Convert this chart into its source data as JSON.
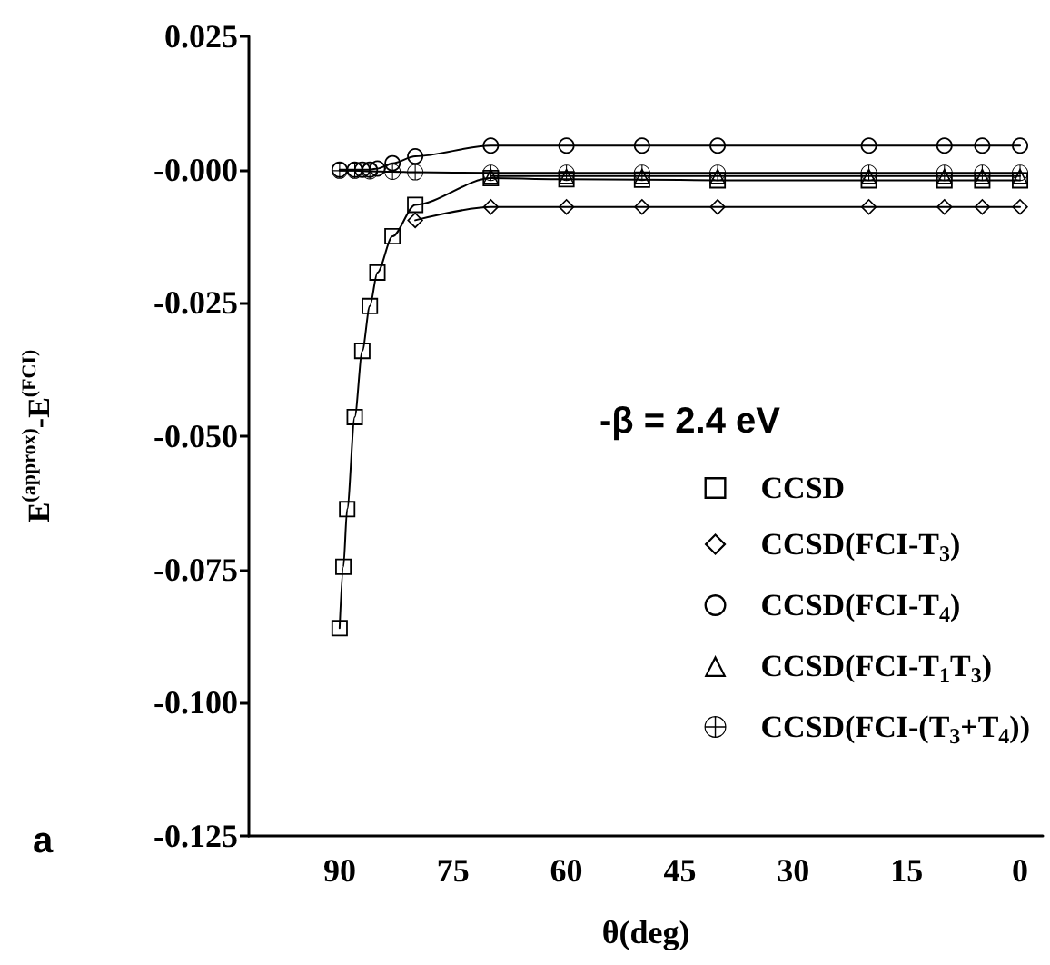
{
  "chart_data": {
    "type": "line",
    "xlabel": "θ(deg)",
    "ylabel": "E$^{(approx)}$-E$^{(FCI)}$",
    "annotations": [
      "-β = 2.4 eV",
      "a"
    ],
    "xlim": [
      102,
      -3
    ],
    "xticks": [
      90,
      75,
      60,
      45,
      30,
      15,
      0
    ],
    "ylim": [
      -0.125,
      0.025
    ],
    "yticks": [
      {
        "value": 0.025,
        "label": "0.025"
      },
      {
        "value": 0,
        "label": "-0.000"
      },
      {
        "value": -0.025,
        "label": "-0.025"
      },
      {
        "value": -0.05,
        "label": "-0.050"
      },
      {
        "value": -0.075,
        "label": "-0.075"
      },
      {
        "value": -0.1,
        "label": "-0.100"
      },
      {
        "value": -0.125,
        "label": "-0.125"
      }
    ],
    "grid": false,
    "legend": "right",
    "line_style": "solid",
    "series": [
      {
        "name": "CCSD",
        "color": "#000000",
        "marker": "square",
        "x": [
          90,
          89.5,
          89,
          88,
          87,
          86,
          85,
          83,
          80,
          70,
          60,
          50,
          40,
          20,
          10,
          5,
          0
        ],
        "values": [
          -0.086,
          -0.0745,
          -0.0637,
          -0.0464,
          -0.034,
          -0.0256,
          -0.0193,
          -0.0125,
          -0.0066,
          -0.0016,
          -0.0018,
          -0.0019,
          -0.002,
          -0.002,
          -0.002,
          -0.002,
          -0.002
        ]
      },
      {
        "name": "CCSD(FCI-T$_{3}$)",
        "color": "#000000",
        "marker": "diamond",
        "x": [
          80,
          70,
          60,
          50,
          40,
          20,
          10,
          5,
          0
        ],
        "values": [
          -0.0095,
          -0.007,
          -0.007,
          -0.007,
          -0.007,
          -0.007,
          -0.007,
          -0.007,
          -0.007
        ]
      },
      {
        "name": "CCSD(FCI-T$_{4}$)",
        "color": "#000000",
        "marker": "circle",
        "x": [
          90,
          88,
          87,
          86,
          85,
          83,
          80,
          70,
          60,
          50,
          40,
          20,
          10,
          5,
          0
        ],
        "values": [
          0,
          0,
          0,
          0,
          0.0002,
          0.0012,
          0.0025,
          0.0045,
          0.0045,
          0.0045,
          0.0045,
          0.0045,
          0.0045,
          0.0045,
          0.0045
        ]
      },
      {
        "name": "CCSD(FCI-T$_{1}$T$_{3}$)",
        "color": "#000000",
        "marker": "triangle",
        "x": [
          70,
          60,
          50,
          40,
          20,
          10,
          5,
          0
        ],
        "values": [
          -0.0012,
          -0.0012,
          -0.0012,
          -0.0012,
          -0.0012,
          -0.0012,
          -0.0012,
          -0.0012
        ]
      },
      {
        "name": "CCSD(FCI-(T$_{3}$+T$_{4}$))",
        "color": "#000000",
        "marker": "cross",
        "x": [
          90,
          88,
          86,
          83,
          80,
          70,
          60,
          50,
          40,
          20,
          10,
          5,
          0
        ],
        "values": [
          -0.0002,
          -0.0002,
          -0.0003,
          -0.0004,
          -0.0005,
          -0.0006,
          -0.0006,
          -0.0006,
          -0.0006,
          -0.0006,
          -0.0006,
          -0.0006,
          -0.0006
        ]
      }
    ]
  }
}
